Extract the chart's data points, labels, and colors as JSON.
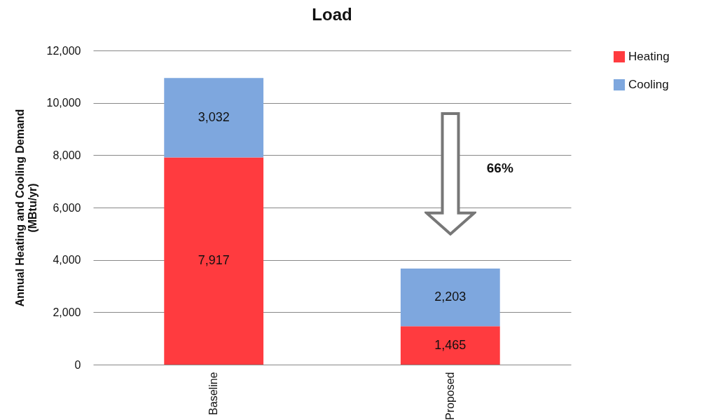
{
  "chart_data": {
    "type": "bar",
    "title": "Load",
    "ylabel": "Annual Heating and Cooling  Demand\n(MBtu/yr)",
    "categories": [
      "Baseline",
      "Proposed"
    ],
    "stacked": true,
    "series": [
      {
        "name": "Heating",
        "color": "#ff3b3f",
        "values": [
          7917,
          1465
        ],
        "value_labels": [
          "7,917",
          "1,465"
        ]
      },
      {
        "name": "Cooling",
        "color": "#7ea7de",
        "values": [
          3032,
          2203
        ],
        "value_labels": [
          "3,032",
          "2,203"
        ]
      }
    ],
    "ylim": [
      0,
      12000
    ],
    "yticks": [
      {
        "value": 0,
        "label": "0"
      },
      {
        "value": 2000,
        "label": "2,000"
      },
      {
        "value": 4000,
        "label": "4,000"
      },
      {
        "value": 6000,
        "label": "6,000"
      },
      {
        "value": 8000,
        "label": "8,000"
      },
      {
        "value": 10000,
        "label": "10,000"
      },
      {
        "value": 12000,
        "label": "12,000"
      }
    ],
    "grid": "y",
    "legend": "top right",
    "annotations": [
      "66%"
    ]
  }
}
